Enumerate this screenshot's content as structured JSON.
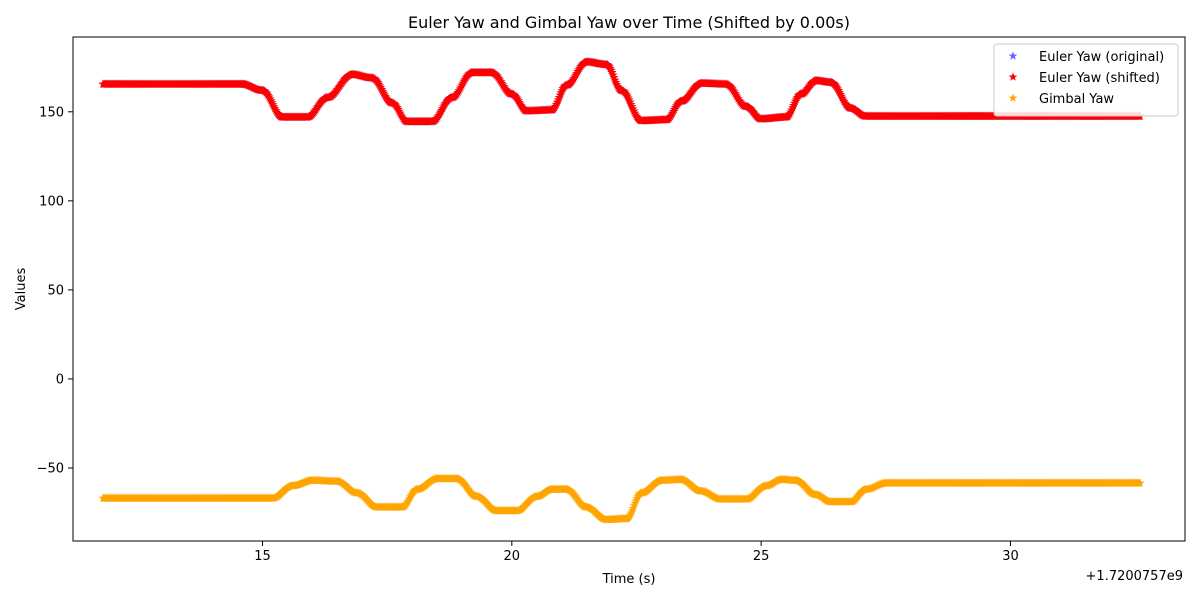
{
  "chart_data": {
    "type": "scatter",
    "title": "Euler Yaw and Gimbal Yaw over Time (Shifted by 0.00s)",
    "xlabel": "Time (s)",
    "ylabel": "Values",
    "x_offset_label": "+1.7200757e9",
    "xlim": [
      11.2,
      33.5
    ],
    "ylim": [
      -91,
      192
    ],
    "x_ticks": [
      15,
      20,
      25,
      30
    ],
    "y_ticks": [
      -50,
      0,
      50,
      100,
      150
    ],
    "y_tick_labels": [
      "−50",
      "0",
      "50",
      "100",
      "150"
    ],
    "grid": false,
    "legend_position": "top-right",
    "marker": "star",
    "series": [
      {
        "name": "Euler Yaw (original)",
        "color": "#0000ff",
        "opacity": 0.6,
        "points": [
          [
            11.8,
            165.5
          ],
          [
            14.6,
            165.5
          ],
          [
            15.0,
            162
          ],
          [
            15.4,
            147
          ],
          [
            15.9,
            147
          ],
          [
            16.3,
            158
          ],
          [
            16.8,
            171
          ],
          [
            17.2,
            169
          ],
          [
            17.6,
            155
          ],
          [
            17.9,
            144.5
          ],
          [
            18.4,
            144.5
          ],
          [
            18.8,
            158
          ],
          [
            19.2,
            172
          ],
          [
            19.6,
            172
          ],
          [
            20.0,
            160
          ],
          [
            20.3,
            150.5
          ],
          [
            20.8,
            151
          ],
          [
            21.1,
            165
          ],
          [
            21.5,
            178
          ],
          [
            21.9,
            176.5
          ],
          [
            22.2,
            162
          ],
          [
            22.6,
            145
          ],
          [
            23.1,
            145.5
          ],
          [
            23.4,
            156
          ],
          [
            23.8,
            166
          ],
          [
            24.3,
            165.5
          ],
          [
            24.7,
            153
          ],
          [
            25.0,
            146
          ],
          [
            25.5,
            147
          ],
          [
            25.8,
            160
          ],
          [
            26.1,
            167.5
          ],
          [
            26.4,
            166.5
          ],
          [
            26.8,
            152
          ],
          [
            27.1,
            147.5
          ],
          [
            29.0,
            147.5
          ],
          [
            32.6,
            147.5
          ]
        ]
      },
      {
        "name": "Euler Yaw (shifted)",
        "color": "#ff0000",
        "opacity": 1,
        "points": [
          [
            11.8,
            165.5
          ],
          [
            14.6,
            165.5
          ],
          [
            15.0,
            162
          ],
          [
            15.4,
            147
          ],
          [
            15.9,
            147
          ],
          [
            16.3,
            158
          ],
          [
            16.8,
            171
          ],
          [
            17.2,
            169
          ],
          [
            17.6,
            155
          ],
          [
            17.9,
            144.5
          ],
          [
            18.4,
            144.5
          ],
          [
            18.8,
            158
          ],
          [
            19.2,
            172
          ],
          [
            19.6,
            172
          ],
          [
            20.0,
            160
          ],
          [
            20.3,
            150.5
          ],
          [
            20.8,
            151
          ],
          [
            21.1,
            165
          ],
          [
            21.5,
            178
          ],
          [
            21.9,
            176.5
          ],
          [
            22.2,
            162
          ],
          [
            22.6,
            145
          ],
          [
            23.1,
            145.5
          ],
          [
            23.4,
            156
          ],
          [
            23.8,
            166
          ],
          [
            24.3,
            165.5
          ],
          [
            24.7,
            153
          ],
          [
            25.0,
            146
          ],
          [
            25.5,
            147
          ],
          [
            25.8,
            160
          ],
          [
            26.1,
            167.5
          ],
          [
            26.4,
            166.5
          ],
          [
            26.8,
            152
          ],
          [
            27.1,
            147.5
          ],
          [
            29.0,
            147.5
          ],
          [
            32.6,
            147.5
          ]
        ]
      },
      {
        "name": "Gimbal Yaw",
        "color": "#ffa500",
        "opacity": 1,
        "points": [
          [
            11.8,
            -67
          ],
          [
            15.2,
            -67
          ],
          [
            15.6,
            -60
          ],
          [
            16.0,
            -57
          ],
          [
            16.5,
            -57.5
          ],
          [
            16.9,
            -64
          ],
          [
            17.3,
            -72
          ],
          [
            17.8,
            -72
          ],
          [
            18.1,
            -62
          ],
          [
            18.5,
            -56
          ],
          [
            18.9,
            -56
          ],
          [
            19.3,
            -66
          ],
          [
            19.7,
            -74
          ],
          [
            20.1,
            -74
          ],
          [
            20.5,
            -66
          ],
          [
            20.8,
            -62
          ],
          [
            21.1,
            -62
          ],
          [
            21.5,
            -72
          ],
          [
            21.9,
            -79
          ],
          [
            22.3,
            -78.5
          ],
          [
            22.6,
            -64
          ],
          [
            23.0,
            -57
          ],
          [
            23.4,
            -56.5
          ],
          [
            23.8,
            -63
          ],
          [
            24.2,
            -67.5
          ],
          [
            24.7,
            -67.5
          ],
          [
            25.1,
            -60
          ],
          [
            25.4,
            -56.5
          ],
          [
            25.7,
            -57
          ],
          [
            26.1,
            -65
          ],
          [
            26.4,
            -69
          ],
          [
            26.8,
            -69
          ],
          [
            27.1,
            -62
          ],
          [
            27.5,
            -58.5
          ],
          [
            29.0,
            -58.5
          ],
          [
            32.6,
            -58.5
          ]
        ]
      }
    ]
  }
}
